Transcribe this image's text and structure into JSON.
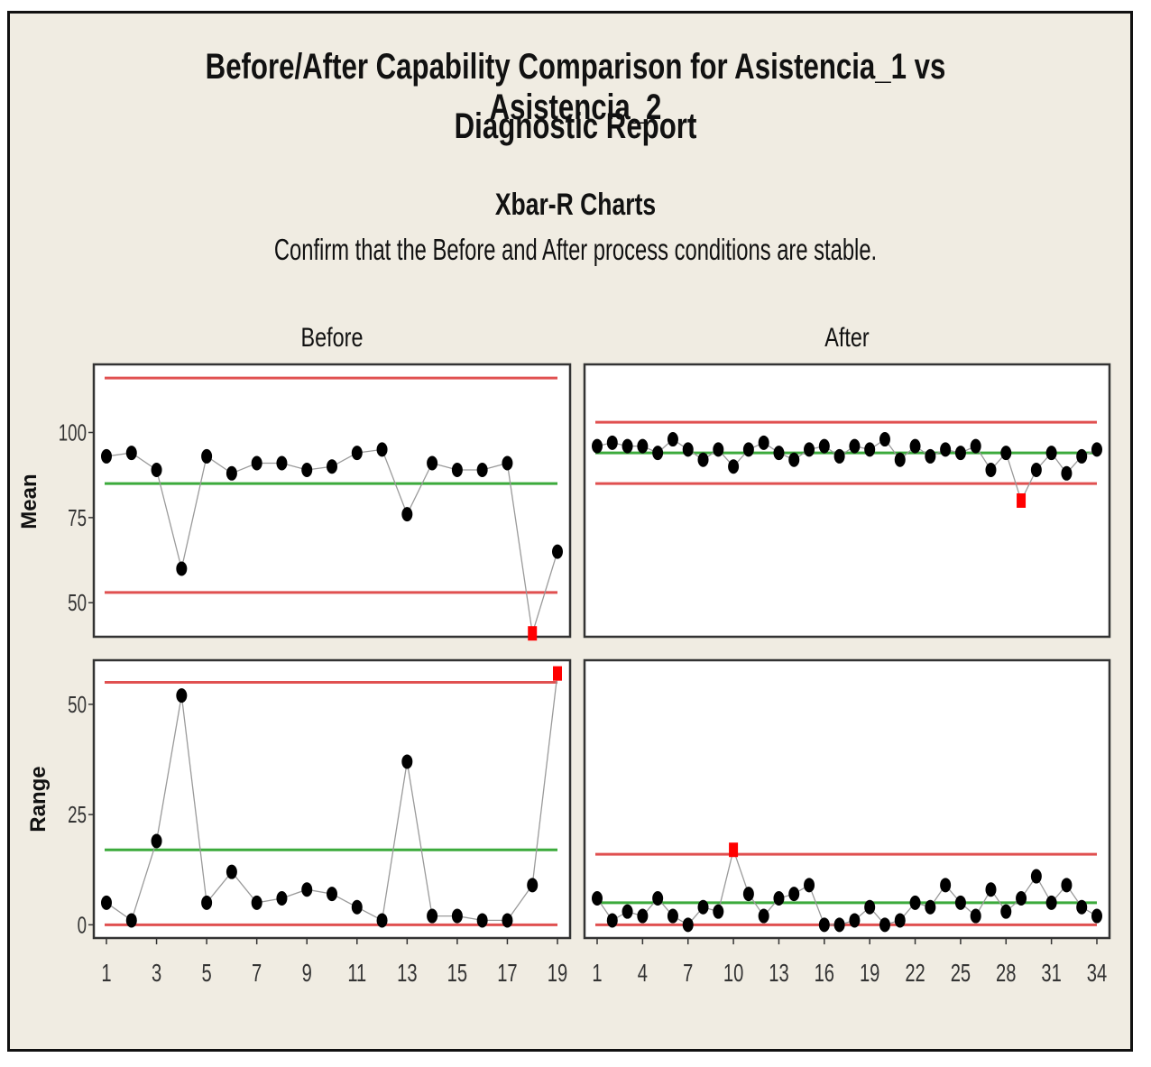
{
  "report": {
    "title": "Before/After Capability Comparison for Asistencia_1 vs Asistencia_2",
    "subtitle": "Diagnostic Report",
    "section": "Xbar-R Charts",
    "instruction": "Confirm that the Before and After process conditions are stable."
  },
  "colors": {
    "background": "#f0ece2",
    "control_limit": "#e05050",
    "center_line": "#3caa3c",
    "point": "#000000",
    "out_of_control": "#ff0000",
    "connector": "#9a9a9a"
  },
  "chart_data": [
    {
      "type": "line",
      "panel": "Before",
      "title": "Before",
      "ylabel": "Mean",
      "ylim": [
        40,
        120
      ],
      "yticks": [
        50,
        75,
        100
      ],
      "x": [
        1,
        2,
        3,
        4,
        5,
        6,
        7,
        8,
        9,
        10,
        11,
        12,
        13,
        14,
        15,
        16,
        17,
        18,
        19
      ],
      "xticks": [
        1,
        3,
        5,
        7,
        9,
        11,
        13,
        15,
        17,
        19
      ],
      "values": [
        93,
        94,
        89,
        60,
        93,
        88,
        91,
        91,
        89,
        90,
        94,
        95,
        76,
        91,
        89,
        89,
        91,
        41,
        65
      ],
      "out_of_control": [
        18
      ],
      "ucl": 116,
      "center": 85,
      "lcl": 53
    },
    {
      "type": "line",
      "panel": "After",
      "title": "After",
      "ylabel": "",
      "ylim": [
        40,
        120
      ],
      "yticks": [
        50,
        75,
        100
      ],
      "x": [
        1,
        2,
        3,
        4,
        5,
        6,
        7,
        8,
        9,
        10,
        11,
        12,
        13,
        14,
        15,
        16,
        17,
        18,
        19,
        20,
        21,
        22,
        23,
        24,
        25,
        26,
        27,
        28,
        29,
        30,
        31,
        32,
        33,
        34
      ],
      "xticks": [
        1,
        4,
        7,
        10,
        13,
        16,
        19,
        22,
        25,
        28,
        31,
        34
      ],
      "values": [
        96,
        97,
        96,
        96,
        94,
        98,
        95,
        92,
        95,
        90,
        95,
        97,
        94,
        92,
        95,
        96,
        93,
        96,
        95,
        98,
        92,
        96,
        93,
        95,
        94,
        96,
        89,
        94,
        80,
        89,
        94,
        88,
        93,
        95
      ],
      "out_of_control": [
        29
      ],
      "ucl": 103,
      "center": 94,
      "lcl": 85
    },
    {
      "type": "line",
      "panel": "Before",
      "title": "",
      "ylabel": "Range",
      "ylim": [
        -3,
        60
      ],
      "yticks": [
        0,
        25,
        50
      ],
      "x": [
        1,
        2,
        3,
        4,
        5,
        6,
        7,
        8,
        9,
        10,
        11,
        12,
        13,
        14,
        15,
        16,
        17,
        18,
        19
      ],
      "xticks": [
        1,
        3,
        5,
        7,
        9,
        11,
        13,
        15,
        17,
        19
      ],
      "values": [
        5,
        1,
        19,
        52,
        5,
        12,
        5,
        6,
        8,
        7,
        4,
        1,
        37,
        2,
        2,
        1,
        1,
        9,
        57
      ],
      "out_of_control": [
        19
      ],
      "ucl": 55,
      "center": 17,
      "lcl": 0
    },
    {
      "type": "line",
      "panel": "After",
      "title": "",
      "ylabel": "",
      "ylim": [
        -3,
        60
      ],
      "yticks": [
        0,
        25,
        50
      ],
      "x": [
        1,
        2,
        3,
        4,
        5,
        6,
        7,
        8,
        9,
        10,
        11,
        12,
        13,
        14,
        15,
        16,
        17,
        18,
        19,
        20,
        21,
        22,
        23,
        24,
        25,
        26,
        27,
        28,
        29,
        30,
        31,
        32,
        33,
        34
      ],
      "xticks": [
        1,
        4,
        7,
        10,
        13,
        16,
        19,
        22,
        25,
        28,
        31,
        34
      ],
      "values": [
        6,
        1,
        3,
        2,
        6,
        2,
        0,
        4,
        3,
        17,
        7,
        2,
        6,
        7,
        9,
        0,
        0,
        1,
        4,
        0,
        1,
        5,
        4,
        9,
        5,
        2,
        8,
        3,
        6,
        11,
        5,
        9,
        4,
        2
      ],
      "out_of_control": [
        10
      ],
      "ucl": 16,
      "center": 5,
      "lcl": 0
    }
  ]
}
